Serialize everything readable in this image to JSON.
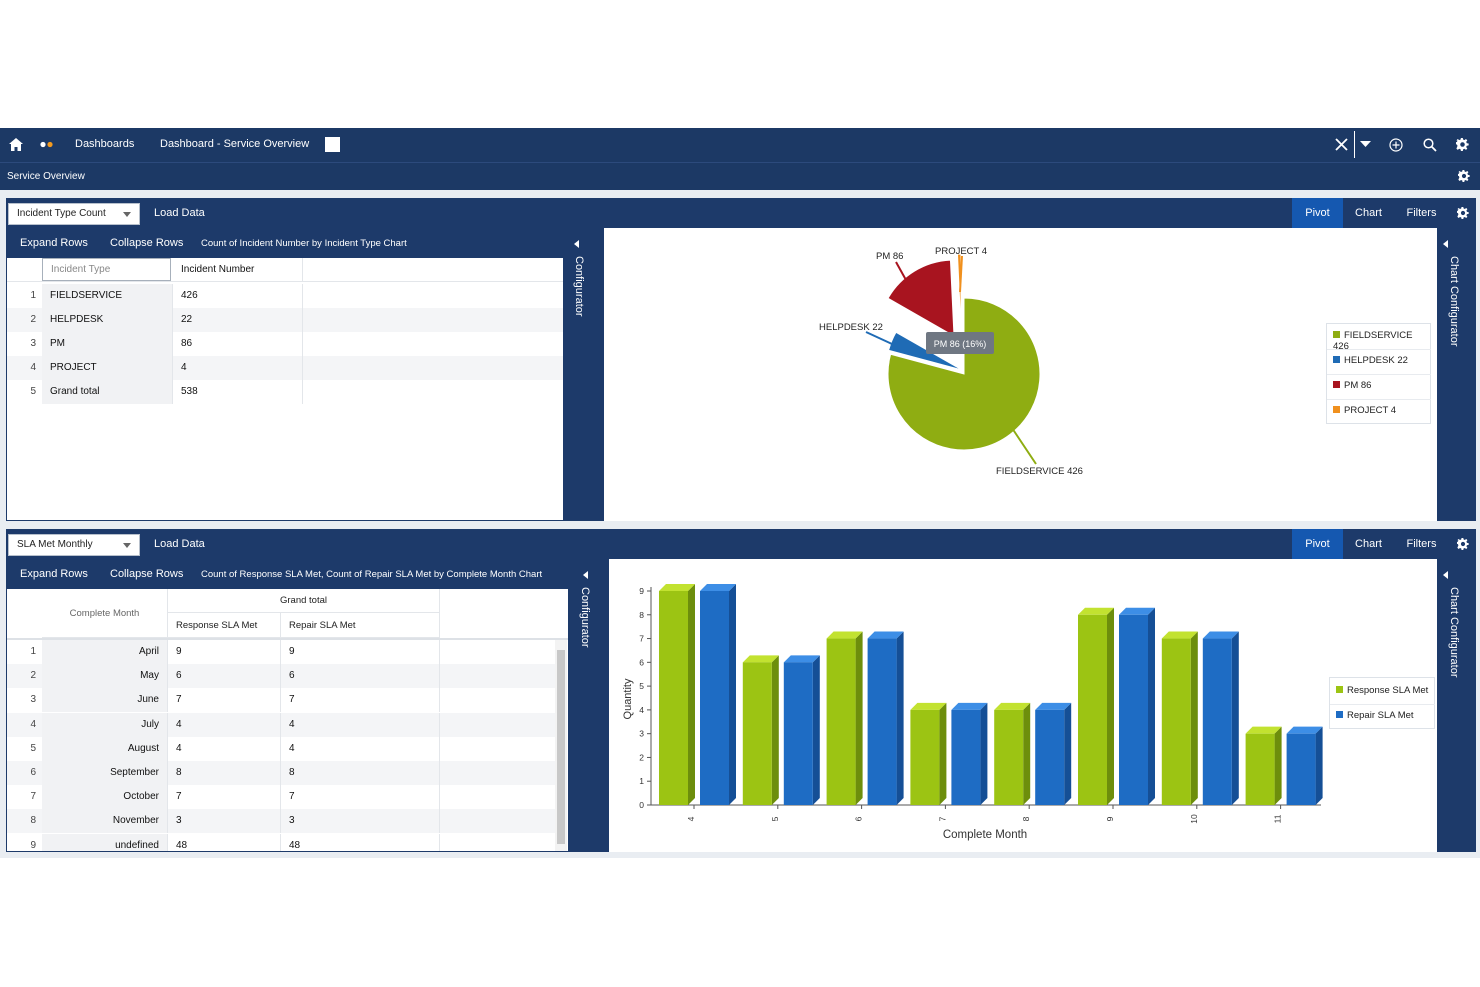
{
  "nav": {
    "breadcrumb_dashboards": "Dashboards",
    "breadcrumb_current": "Dashboard - Service Overview",
    "subtitle": "Service Overview"
  },
  "panel1": {
    "selector": "Incident Type Count",
    "load_data": "Load Data",
    "expand_rows": "Expand Rows",
    "collapse_rows": "Collapse Rows",
    "chart_title": "Count of Incident Number by Incident Type Chart",
    "tabs": [
      "Pivot",
      "Chart",
      "Filters"
    ],
    "configurator": "Configurator",
    "chart_configurator": "Chart Configurator",
    "table": {
      "header_type": "Incident Type",
      "header_number": "Incident Number",
      "rows": [
        {
          "n": "1",
          "type": "FIELDSERVICE",
          "value": "426"
        },
        {
          "n": "2",
          "type": "HELPDESK",
          "value": "22"
        },
        {
          "n": "3",
          "type": "PM",
          "value": "86"
        },
        {
          "n": "4",
          "type": "PROJECT",
          "value": "4"
        },
        {
          "n": "5",
          "type": "Grand total",
          "value": "538"
        }
      ]
    }
  },
  "chart_data": [
    {
      "type": "pie",
      "slices": [
        {
          "label": "FIELDSERVICE 426",
          "value": 426,
          "color": "#8fad12"
        },
        {
          "label": "HELPDESK 22",
          "value": 22,
          "color": "#1f6bb5"
        },
        {
          "label": "PM 86",
          "value": 86,
          "color": "#a8141f"
        },
        {
          "label": "PROJECT 4",
          "value": 4,
          "color": "#f0901e"
        }
      ],
      "tooltip": "PM 86 (16%)",
      "legend": [
        "FIELDSERVICE 426",
        "HELPDESK 22",
        "PM 86",
        "PROJECT 4"
      ],
      "legend_position": "right"
    },
    {
      "type": "bar",
      "categories": [
        "4",
        "5",
        "6",
        "7",
        "8",
        "9",
        "10",
        "11"
      ],
      "series": [
        {
          "name": "Response SLA Met",
          "values": [
            9,
            6,
            7,
            4,
            4,
            8,
            7,
            3
          ],
          "color": "#9cc413"
        },
        {
          "name": "Repair SLA Met",
          "values": [
            9,
            6,
            7,
            4,
            4,
            8,
            7,
            3
          ],
          "color": "#1e6cc4"
        }
      ],
      "xlabel": "Complete Month",
      "ylabel": "Quantity",
      "ylim": [
        0,
        9
      ],
      "yticks": [
        "0",
        "1",
        "2",
        "3",
        "4",
        "5",
        "6",
        "7",
        "8",
        "9"
      ],
      "legend_position": "right"
    }
  ],
  "panel2": {
    "selector": "SLA Met Monthly",
    "load_data": "Load Data",
    "expand_rows": "Expand Rows",
    "collapse_rows": "Collapse Rows",
    "chart_title": "Count of Response SLA Met, Count of Repair SLA Met by Complete Month Chart",
    "tabs": [
      "Pivot",
      "Chart",
      "Filters"
    ],
    "configurator": "Configurator",
    "chart_configurator": "Chart Configurator",
    "table": {
      "header_month": "Complete Month",
      "header_group": "Grand total",
      "header_response": "Response SLA Met",
      "header_repair": "Repair SLA Met",
      "rows": [
        {
          "n": "1",
          "month": "April",
          "resp": "9",
          "rep": "9"
        },
        {
          "n": "2",
          "month": "May",
          "resp": "6",
          "rep": "6"
        },
        {
          "n": "3",
          "month": "June",
          "resp": "7",
          "rep": "7"
        },
        {
          "n": "4",
          "month": "July",
          "resp": "4",
          "rep": "4"
        },
        {
          "n": "5",
          "month": "August",
          "resp": "4",
          "rep": "4"
        },
        {
          "n": "6",
          "month": "September",
          "resp": "8",
          "rep": "8"
        },
        {
          "n": "7",
          "month": "October",
          "resp": "7",
          "rep": "7"
        },
        {
          "n": "8",
          "month": "November",
          "resp": "3",
          "rep": "3"
        },
        {
          "n": "9",
          "month": "undefined",
          "resp": "48",
          "rep": "48"
        }
      ]
    }
  }
}
